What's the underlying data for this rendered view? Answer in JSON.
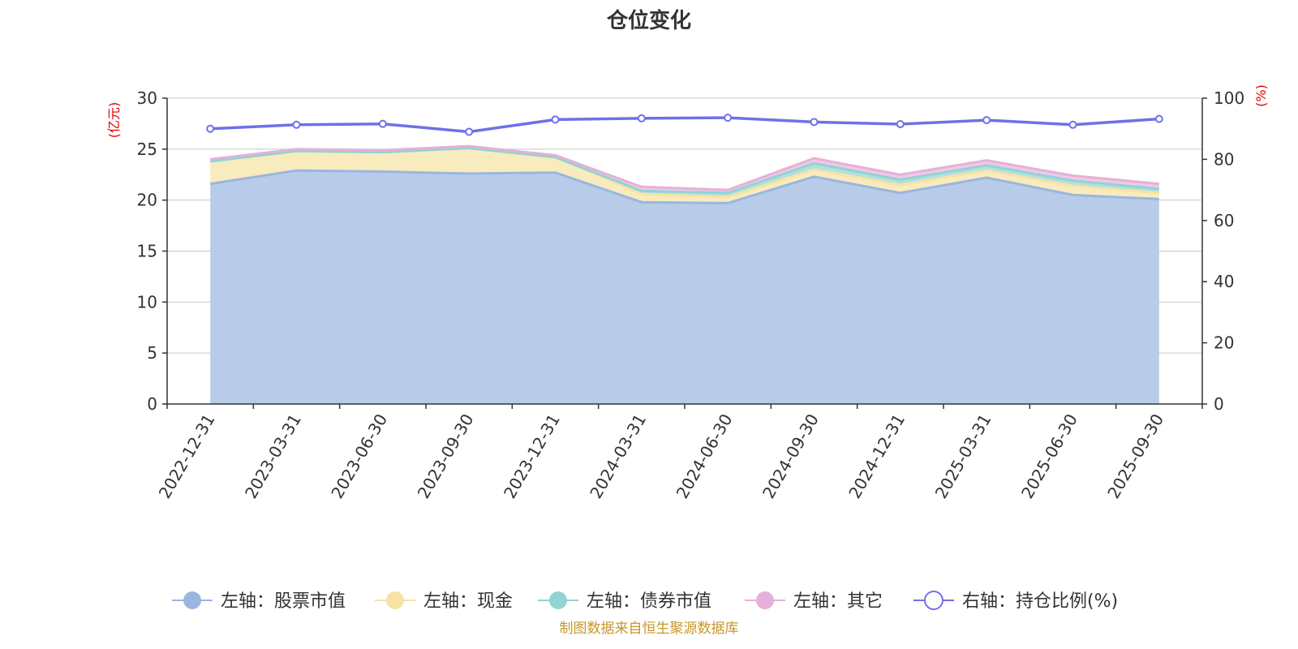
{
  "chart_data": {
    "type": "area",
    "title": "仓位变化",
    "categories": [
      "2022-12-31",
      "2023-03-31",
      "2023-06-30",
      "2023-09-30",
      "2023-12-31",
      "2024-03-31",
      "2024-06-30",
      "2024-09-30",
      "2024-12-31",
      "2025-03-31",
      "2025-06-30",
      "2025-09-30"
    ],
    "left_axis": {
      "unit": "(亿元)",
      "ylim": [
        0,
        30
      ],
      "ticks": [
        0,
        5,
        10,
        15,
        20,
        25,
        30
      ]
    },
    "right_axis": {
      "unit": "(%)",
      "ylim": [
        0,
        100
      ],
      "ticks": [
        0,
        20,
        40,
        60,
        80,
        100
      ]
    },
    "series": [
      {
        "name": "左轴：股票市值",
        "axis": "left",
        "color": "#9ab6e0",
        "fill": "#b8cce9",
        "values": [
          21.6,
          22.9,
          22.8,
          22.6,
          22.7,
          19.8,
          19.7,
          22.3,
          20.7,
          22.2,
          20.5,
          20.1
        ]
      },
      {
        "name": "左轴：现金",
        "axis": "left",
        "color": "#f6e3a4",
        "fill": "#f8ebbd",
        "values": [
          2.2,
          1.9,
          1.9,
          2.5,
          1.5,
          0.8,
          0.6,
          0.7,
          0.8,
          0.7,
          0.9,
          0.6
        ]
      },
      {
        "name": "左轴：债券市值",
        "axis": "left",
        "color": "#93d3d3",
        "fill": "#b1e0e0",
        "values": [
          0,
          0,
          0,
          0,
          0,
          0.3,
          0.4,
          0.6,
          0.5,
          0.5,
          0.5,
          0.4
        ]
      },
      {
        "name": "左轴：其它",
        "axis": "left",
        "color": "#e5b1d8",
        "fill": "#efc9e5",
        "values": [
          0.2,
          0.2,
          0.2,
          0.2,
          0.2,
          0.4,
          0.3,
          0.5,
          0.5,
          0.5,
          0.5,
          0.5
        ]
      },
      {
        "name": "右轴：持仓比例(%)",
        "axis": "right",
        "color": "#7070e8",
        "type": "line",
        "values": [
          90.0,
          91.3,
          91.6,
          89.0,
          93.0,
          93.4,
          93.6,
          92.2,
          91.5,
          92.8,
          91.3,
          93.2
        ]
      }
    ],
    "source": "制图数据来自恒生聚源数据库"
  }
}
